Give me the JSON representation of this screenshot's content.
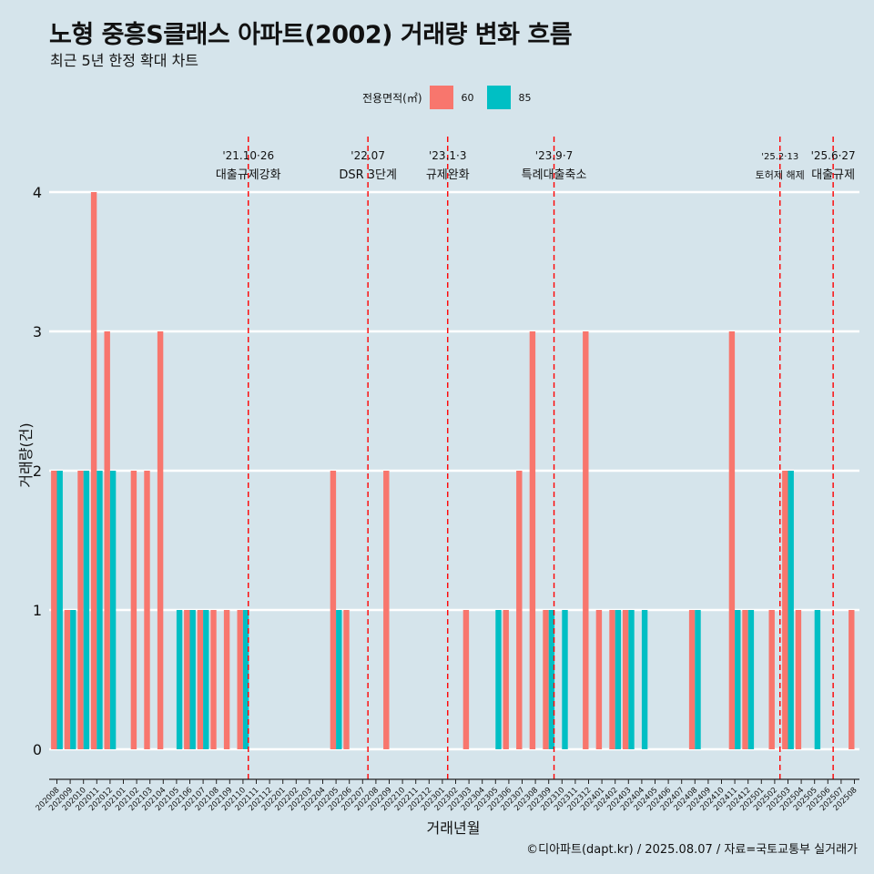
{
  "title": "노형 중흥S클래스 아파트(2002) 거래량 변화 흐름",
  "subtitle": "최근 5년 한정 확대 차트",
  "caption": "©디아파트(dapt.kr) / 2025.08.07 / 자료=국토교통부 실거래가",
  "chart_data": {
    "type": "bar",
    "xlabel": "거래년월",
    "ylabel": "거래량(건)",
    "ylim": [
      0,
      4
    ],
    "yticks": [
      "0",
      "1",
      "2",
      "3",
      "4"
    ],
    "grid": true,
    "legend": {
      "title": "전용면적(㎡)",
      "position": "top",
      "items": [
        {
          "label": "60",
          "color": "#f8766d"
        },
        {
          "label": "85",
          "color": "#00bfc4"
        }
      ]
    },
    "categories": [
      "202008",
      "202009",
      "202010",
      "202011",
      "202012",
      "202101",
      "202102",
      "202103",
      "202104",
      "202105",
      "202106",
      "202107",
      "202108",
      "202109",
      "202110",
      "202111",
      "202112",
      "202201",
      "202202",
      "202203",
      "202204",
      "202205",
      "202206",
      "202207",
      "202208",
      "202209",
      "202210",
      "202211",
      "202212",
      "202301",
      "202302",
      "202303",
      "202304",
      "202305",
      "202306",
      "202307",
      "202308",
      "202309",
      "202310",
      "202311",
      "202312",
      "202401",
      "202402",
      "202403",
      "202404",
      "202405",
      "202406",
      "202407",
      "202408",
      "202409",
      "202410",
      "202411",
      "202412",
      "202501",
      "202502",
      "202503",
      "202504",
      "202505",
      "202506",
      "202507",
      "202508"
    ],
    "series": [
      {
        "name": "60",
        "color": "#f8766d",
        "values": [
          2,
          1,
          2,
          4,
          3,
          0,
          2,
          2,
          3,
          0,
          1,
          1,
          1,
          1,
          1,
          0,
          0,
          0,
          0,
          0,
          0,
          2,
          1,
          0,
          0,
          2,
          0,
          0,
          0,
          0,
          0,
          1,
          0,
          0,
          1,
          2,
          3,
          1,
          0,
          0,
          3,
          1,
          1,
          1,
          0,
          0,
          0,
          0,
          1,
          0,
          0,
          3,
          1,
          0,
          1,
          2,
          1,
          0,
          0,
          0,
          1
        ]
      },
      {
        "name": "85",
        "color": "#00bfc4",
        "values": [
          2,
          1,
          2,
          2,
          2,
          0,
          0,
          0,
          0,
          1,
          1,
          1,
          0,
          0,
          1,
          0,
          0,
          0,
          0,
          0,
          0,
          1,
          0,
          0,
          0,
          0,
          0,
          0,
          0,
          0,
          0,
          0,
          0,
          1,
          0,
          0,
          0,
          1,
          1,
          0,
          0,
          0,
          1,
          1,
          1,
          0,
          0,
          0,
          1,
          0,
          0,
          1,
          1,
          0,
          0,
          2,
          0,
          1,
          0,
          0,
          0
        ]
      }
    ],
    "annotations": [
      {
        "date": "'21.10·26",
        "label": "대출규제강화",
        "index": 14.4
      },
      {
        "date": "'22.07",
        "label": "DSR 3단계",
        "index": 23.4
      },
      {
        "date": "'23.1·3",
        "label": "규제완화",
        "index": 29.4
      },
      {
        "date": "'23.9·7",
        "label": "특례대출축소",
        "index": 37.4
      },
      {
        "date": "'25.2·13",
        "label": "토허제 해제",
        "index": 54.4
      },
      {
        "date": "'25.6·27",
        "label": "대출규제",
        "index": 58.4
      }
    ]
  }
}
